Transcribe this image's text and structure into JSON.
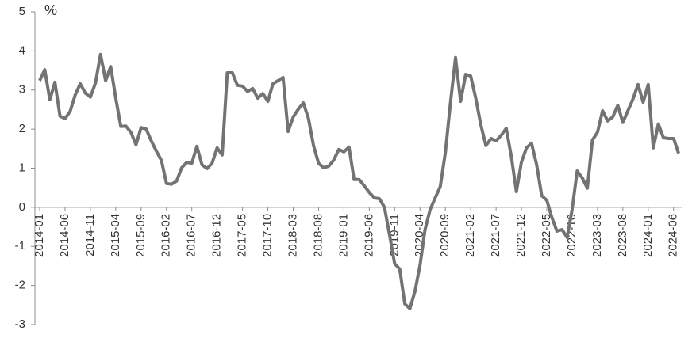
{
  "chart_data": {
    "type": "line",
    "ylabel": "%",
    "categories": [
      "2014-01",
      null,
      null,
      null,
      null,
      "2014-06",
      null,
      null,
      null,
      null,
      "2014-11",
      null,
      null,
      null,
      null,
      "2015-04",
      null,
      null,
      null,
      null,
      "2015-09",
      null,
      null,
      null,
      null,
      "2016-02",
      null,
      null,
      null,
      null,
      "2016-07",
      null,
      null,
      null,
      null,
      "2016-12",
      null,
      null,
      null,
      null,
      "2017-05",
      null,
      null,
      null,
      null,
      "2017-10",
      null,
      null,
      null,
      null,
      "2018-03",
      null,
      null,
      null,
      null,
      "2018-08",
      null,
      null,
      null,
      null,
      "2019-01",
      null,
      null,
      null,
      null,
      "2019-06",
      null,
      null,
      null,
      null,
      "2019-11",
      null,
      null,
      null,
      null,
      "2020-04",
      null,
      null,
      null,
      null,
      "2020-09",
      null,
      null,
      null,
      null,
      "2021-02",
      null,
      null,
      null,
      null,
      "2021-07",
      null,
      null,
      null,
      null,
      "2021-12",
      null,
      null,
      null,
      null,
      "2022-05",
      null,
      null,
      null,
      null,
      "2022-10",
      null,
      null,
      null,
      null,
      "2023-03",
      null,
      null,
      null,
      null,
      "2023-08",
      null,
      null,
      null,
      null,
      "2024-01",
      null,
      null,
      null,
      null,
      "2024-06",
      null
    ],
    "series": [
      {
        "color": "#737373",
        "values": [
          3.24,
          3.52,
          2.75,
          3.2,
          2.33,
          2.27,
          2.45,
          2.87,
          3.16,
          2.92,
          2.82,
          3.18,
          3.91,
          3.24,
          3.6,
          2.8,
          2.07,
          2.08,
          1.92,
          1.6,
          2.04,
          2.0,
          1.7,
          1.44,
          1.2,
          0.61,
          0.59,
          0.67,
          1.01,
          1.15,
          1.13,
          1.56,
          1.09,
          0.99,
          1.13,
          1.52,
          1.34,
          3.44,
          3.44,
          3.12,
          3.1,
          2.96,
          3.04,
          2.79,
          2.91,
          2.71,
          3.16,
          3.24,
          3.32,
          1.94,
          2.31,
          2.51,
          2.67,
          2.27,
          1.58,
          1.13,
          1.01,
          1.05,
          1.21,
          1.48,
          1.42,
          1.54,
          0.71,
          0.71,
          0.55,
          0.38,
          0.24,
          0.22,
          0.0,
          -0.71,
          -1.44,
          -1.58,
          -2.47,
          -2.59,
          -2.15,
          -1.48,
          -0.57,
          -0.06,
          0.24,
          0.53,
          1.4,
          2.67,
          3.83,
          2.71,
          3.4,
          3.36,
          2.79,
          2.11,
          1.58,
          1.76,
          1.7,
          1.84,
          2.02,
          1.3,
          0.4,
          1.15,
          1.52,
          1.64,
          1.09,
          0.3,
          0.18,
          -0.26,
          -0.61,
          -0.57,
          -0.77,
          -0.06,
          0.93,
          0.75,
          0.49,
          1.72,
          1.92,
          2.47,
          2.21,
          2.31,
          2.61,
          2.17,
          2.47,
          2.77,
          3.14,
          2.69,
          3.14,
          1.52,
          2.13,
          1.78,
          1.76,
          1.76,
          1.38
        ]
      }
    ],
    "ylim": [
      -3,
      5
    ],
    "yticks": [
      -3,
      -2,
      -1,
      0,
      1,
      2,
      3,
      4,
      5
    ],
    "grid": false
  }
}
